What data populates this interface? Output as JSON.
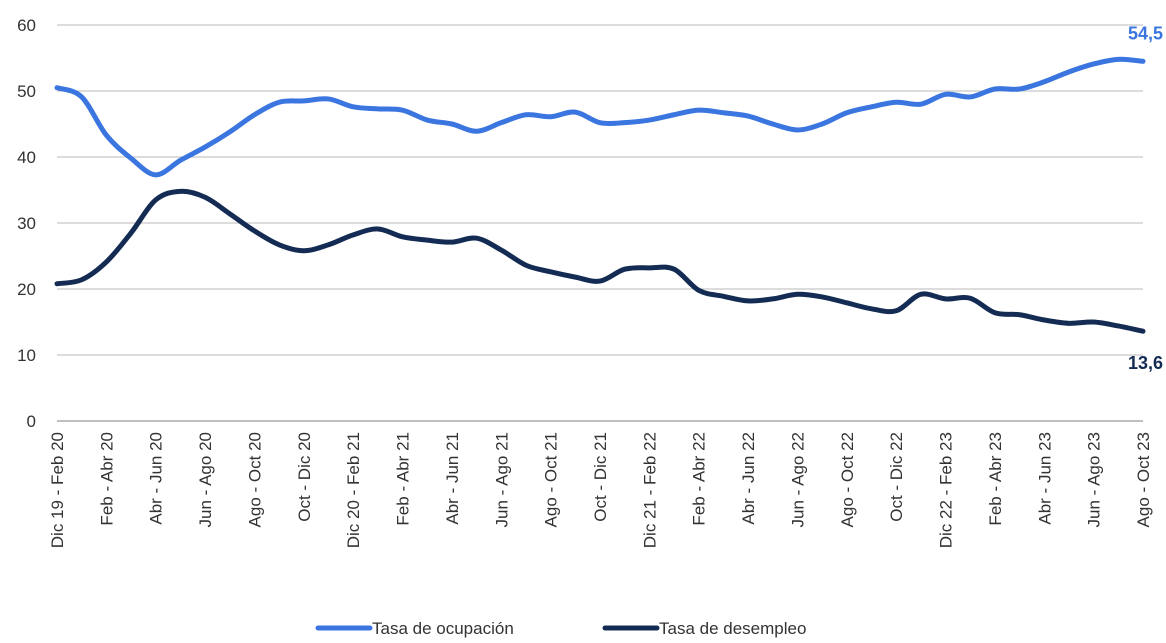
{
  "chart_data": {
    "type": "line",
    "categories": [
      "Dic 19 - Feb 20",
      null,
      "Feb - Abr 20",
      null,
      "Abr - Jun 20",
      null,
      "Jun - Ago 20",
      null,
      "Ago - Oct 20",
      null,
      "Oct - Dic 20",
      null,
      "Dic 20 - Feb 21",
      null,
      "Feb - Abr 21",
      null,
      "Abr - Jun 21",
      null,
      "Jun - Ago 21",
      null,
      "Ago - Oct 21",
      null,
      "Oct - Dic 21",
      null,
      "Dic 21 - Feb 22",
      null,
      "Feb - Abr 22",
      null,
      "Abr - Jun 22",
      null,
      "Jun - Ago 22",
      null,
      "Ago - Oct 22",
      null,
      "Oct - Dic 22",
      null,
      "Dic 22 - Feb 23",
      null,
      "Feb - Abr 23",
      null,
      "Abr - Jun 23",
      null,
      "Jun - Ago 23",
      null,
      "Ago - Oct 23"
    ],
    "series": [
      {
        "name": "Tasa de ocupación",
        "color": "#3a75e0",
        "values": [
          50.5,
          49.1,
          43.3,
          39.8,
          37.3,
          39.5,
          41.5,
          43.8,
          46.4,
          48.3,
          48.5,
          48.8,
          47.6,
          47.3,
          47.1,
          45.6,
          45.0,
          43.9,
          45.2,
          46.4,
          46.1,
          46.8,
          45.2,
          45.2,
          45.6,
          46.4,
          47.1,
          46.7,
          46.2,
          45.0,
          44.1,
          45.0,
          46.7,
          47.6,
          48.3,
          48.0,
          49.5,
          49.1,
          50.3,
          50.3,
          51.4,
          52.9,
          54.1,
          54.8,
          54.5
        ],
        "value_labels": [
          null,
          null,
          null,
          null,
          null,
          null,
          null,
          null,
          null,
          null,
          null,
          null,
          null,
          null,
          null,
          null,
          null,
          null,
          null,
          null,
          null,
          null,
          null,
          null,
          null,
          null,
          null,
          null,
          null,
          null,
          null,
          null,
          null,
          null,
          null,
          null,
          null,
          null,
          null,
          null,
          null,
          null,
          null,
          null,
          "54,5"
        ]
      },
      {
        "name": "Tasa de desempleo",
        "color": "#142c54",
        "values": [
          20.8,
          21.4,
          24.1,
          28.5,
          33.5,
          34.8,
          33.9,
          31.4,
          28.8,
          26.7,
          25.8,
          26.7,
          28.2,
          29.1,
          27.9,
          27.4,
          27.1,
          27.7,
          25.9,
          23.6,
          22.6,
          21.8,
          21.2,
          23.0,
          23.2,
          23.0,
          19.8,
          18.9,
          18.2,
          18.5,
          19.2,
          18.8,
          17.9,
          17.0,
          16.7,
          19.2,
          18.5,
          18.6,
          16.4,
          16.1,
          15.3,
          14.8,
          15.0,
          14.4,
          13.6
        ],
        "value_labels": [
          null,
          null,
          null,
          null,
          null,
          null,
          null,
          null,
          null,
          null,
          null,
          null,
          null,
          null,
          null,
          null,
          null,
          null,
          null,
          null,
          null,
          null,
          null,
          null,
          null,
          null,
          null,
          null,
          null,
          null,
          null,
          null,
          null,
          null,
          null,
          null,
          null,
          null,
          null,
          null,
          null,
          null,
          null,
          null,
          "13,6"
        ]
      }
    ],
    "ylim": [
      0,
      60
    ],
    "yticks": [
      0,
      10,
      20,
      30,
      40,
      50,
      60
    ],
    "grid": true,
    "legend": "bottom"
  }
}
